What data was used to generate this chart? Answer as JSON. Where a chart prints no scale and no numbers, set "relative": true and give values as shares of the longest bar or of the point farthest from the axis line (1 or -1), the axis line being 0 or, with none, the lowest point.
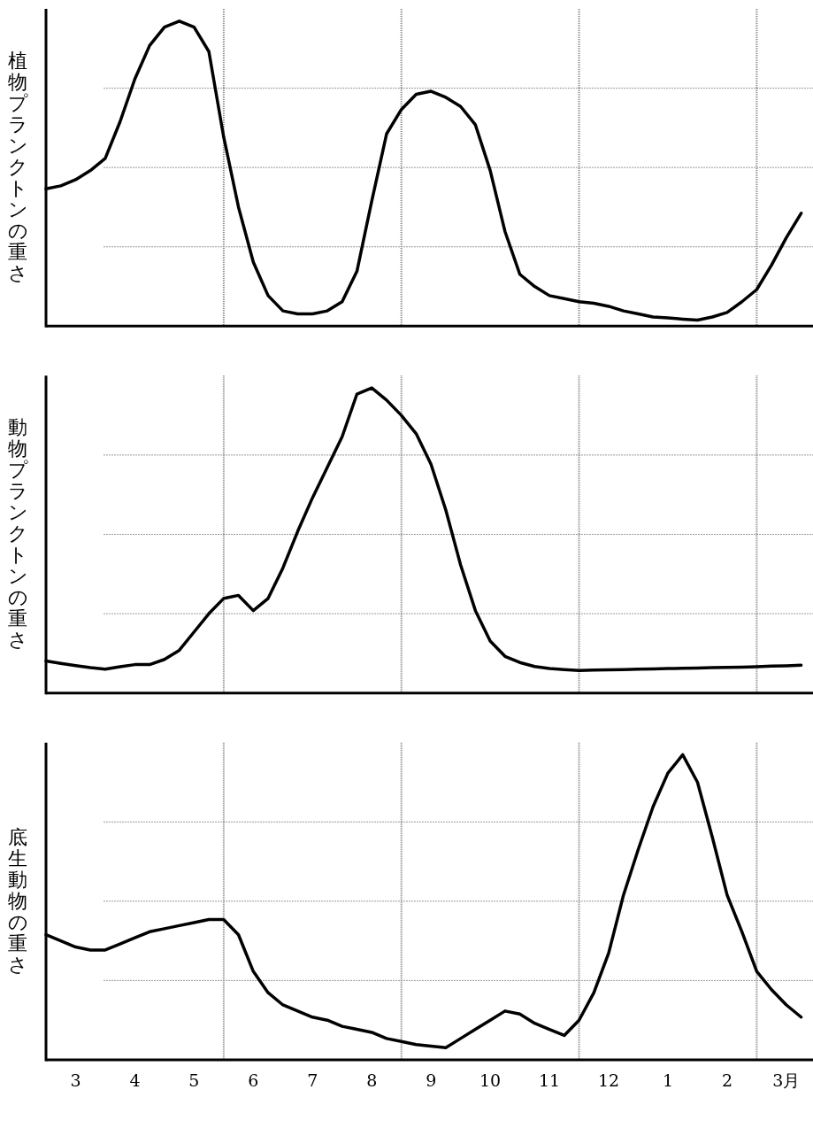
{
  "chart_data": [
    {
      "type": "line",
      "ylabel": "植物プランクトンの重さ",
      "relative": true,
      "grid": true,
      "tick_labels": false,
      "categories": [
        null,
        null,
        null,
        null,
        null,
        null,
        null,
        null,
        null,
        null,
        null,
        null,
        null,
        null,
        null,
        null,
        null,
        null,
        null,
        null,
        null,
        null,
        null,
        null,
        null,
        null,
        null,
        null,
        null,
        null,
        null,
        null,
        null,
        null,
        null,
        null,
        null,
        null,
        null,
        null,
        null,
        null,
        null,
        null,
        null,
        null,
        null,
        null,
        null,
        null,
        null,
        null
      ],
      "series": [
        {
          "color": "#000000",
          "values": [
            0.45,
            0.46,
            0.48,
            0.51,
            0.55,
            0.67,
            0.81,
            0.92,
            0.98,
            1.0,
            0.98,
            0.9,
            0.62,
            0.39,
            0.21,
            0.1,
            0.05,
            0.04,
            0.04,
            0.05,
            0.08,
            0.18,
            0.41,
            0.63,
            0.71,
            0.76,
            0.77,
            0.75,
            0.72,
            0.66,
            0.51,
            0.31,
            0.17,
            0.13,
            0.1,
            0.09,
            0.08,
            0.075,
            0.065,
            0.05,
            0.04,
            0.03,
            0.027,
            0.023,
            0.02,
            0.03,
            0.045,
            0.08,
            0.12,
            0.2,
            0.29,
            0.37
          ]
        }
      ]
    },
    {
      "type": "line",
      "ylabel": "動物プランクトンの重さ",
      "relative": true,
      "grid": true,
      "tick_labels": false,
      "categories": [
        null,
        null,
        null,
        null,
        null,
        null,
        null,
        null,
        null,
        null,
        null,
        null,
        null,
        null,
        null,
        null,
        null,
        null,
        null,
        null,
        null,
        null,
        null,
        null,
        null,
        null,
        null,
        null,
        null,
        null,
        null,
        null,
        null,
        null,
        null,
        null,
        null,
        null,
        null,
        null,
        null,
        null,
        null,
        null,
        null,
        null,
        null,
        null,
        null,
        null,
        null,
        null
      ],
      "series": [
        {
          "color": "#000000",
          "values": [
            0.105,
            0.097,
            0.09,
            0.083,
            0.078,
            0.086,
            0.093,
            0.093,
            0.11,
            0.14,
            0.2,
            0.26,
            0.31,
            0.32,
            0.27,
            0.31,
            0.41,
            0.53,
            0.64,
            0.74,
            0.84,
            0.98,
            1.0,
            0.96,
            0.91,
            0.85,
            0.75,
            0.6,
            0.42,
            0.27,
            0.17,
            0.12,
            0.1,
            0.087,
            0.08,
            0.077,
            0.074,
            0.075,
            0.076,
            0.077,
            0.078,
            0.079,
            0.08,
            0.081,
            0.082,
            0.083,
            0.084,
            0.085,
            0.086,
            0.088,
            0.089,
            0.091
          ]
        }
      ]
    },
    {
      "type": "line",
      "ylabel": "底生動物の重さ",
      "relative": true,
      "grid": true,
      "tick_labels": "x",
      "categories": [
        null,
        null,
        "3",
        null,
        null,
        null,
        "4",
        null,
        null,
        null,
        "5",
        null,
        null,
        null,
        "6",
        null,
        null,
        null,
        "7",
        null,
        null,
        null,
        "8",
        null,
        null,
        null,
        "9",
        null,
        null,
        null,
        "10",
        null,
        null,
        null,
        "11",
        null,
        null,
        null,
        "12",
        null,
        null,
        null,
        "1",
        null,
        null,
        null,
        "2",
        null,
        null,
        null,
        "3月",
        null
      ],
      "series": [
        {
          "color": "#000000",
          "values": [
            0.41,
            0.39,
            0.37,
            0.36,
            0.36,
            0.38,
            0.4,
            0.42,
            0.43,
            0.44,
            0.45,
            0.46,
            0.46,
            0.41,
            0.29,
            0.22,
            0.18,
            0.16,
            0.14,
            0.13,
            0.11,
            0.1,
            0.09,
            0.07,
            0.06,
            0.05,
            0.045,
            0.04,
            0.07,
            0.1,
            0.13,
            0.16,
            0.15,
            0.12,
            0.1,
            0.08,
            0.13,
            0.22,
            0.35,
            0.54,
            0.69,
            0.83,
            0.94,
            1.0,
            0.91,
            0.73,
            0.54,
            0.42,
            0.29,
            0.23,
            0.18,
            0.14
          ]
        }
      ]
    }
  ]
}
